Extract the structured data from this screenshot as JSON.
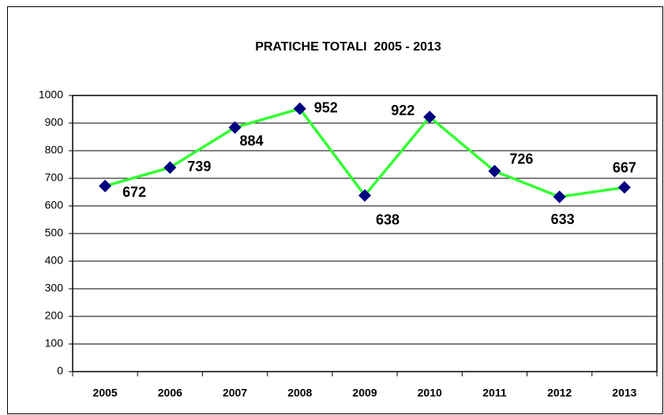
{
  "chart_data": {
    "type": "line",
    "title": "PRATICHE TOTALI  2005 - 2013",
    "categories": [
      "2005",
      "2006",
      "2007",
      "2008",
      "2009",
      "2010",
      "2011",
      "2012",
      "2013"
    ],
    "series": [
      {
        "name": "Pratiche totali",
        "color": "#33ff33",
        "marker_color": "#000080",
        "values": [
          672,
          739,
          884,
          952,
          638,
          922,
          726,
          633,
          667
        ]
      }
    ],
    "ylim": [
      0,
      1000
    ],
    "yticks": [
      0,
      100,
      200,
      300,
      400,
      500,
      600,
      700,
      800,
      900,
      1000
    ],
    "grid": true
  }
}
